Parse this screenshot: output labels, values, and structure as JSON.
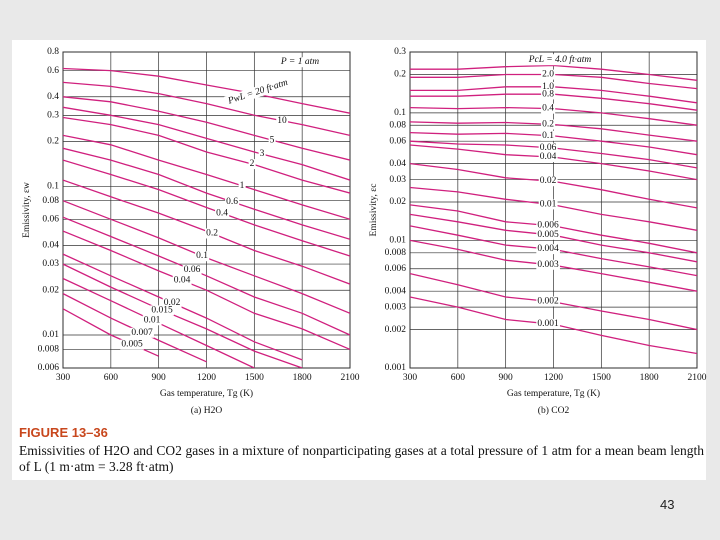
{
  "chart_data": [
    {
      "type": "line",
      "subtitle": "(a) H2O",
      "x_label": "Gas temperature, Tg (K)",
      "y_label": "Emissivity, εw",
      "annotations": [
        "P = 1 atm",
        "PwL = 20 ft·atm"
      ],
      "x": [
        300,
        600,
        900,
        1200,
        1500,
        1800,
        2100
      ],
      "xlim": [
        300,
        2100
      ],
      "xticks": [
        300,
        600,
        900,
        1200,
        1500,
        1800,
        2100
      ],
      "ylim": [
        0.006,
        0.8
      ],
      "yticks": [
        0.8,
        0.6,
        0.4,
        0.3,
        0.2,
        0.1,
        0.08,
        0.06,
        0.04,
        0.03,
        0.02,
        0.01,
        0.008,
        0.006
      ],
      "log_y": true,
      "grid": true,
      "series": [
        {
          "color": "#d0207e",
          "values": [
            0.62,
            0.6,
            0.55,
            0.48,
            0.42,
            0.36,
            0.31
          ]
        },
        {
          "name": "10",
          "color": "#d0207e",
          "values": [
            0.5,
            0.47,
            0.42,
            0.36,
            0.3,
            0.26,
            0.22
          ]
        },
        {
          "name": "5",
          "color": "#d0207e",
          "values": [
            0.4,
            0.37,
            0.32,
            0.27,
            0.22,
            0.18,
            0.15
          ]
        },
        {
          "name": "3",
          "color": "#d0207e",
          "values": [
            0.34,
            0.3,
            0.26,
            0.21,
            0.17,
            0.14,
            0.11
          ]
        },
        {
          "name": "2",
          "color": "#d0207e",
          "values": [
            0.29,
            0.26,
            0.22,
            0.17,
            0.14,
            0.11,
            0.09
          ]
        },
        {
          "name": "1",
          "color": "#d0207e",
          "values": [
            0.22,
            0.19,
            0.15,
            0.12,
            0.095,
            0.075,
            0.06
          ]
        },
        {
          "name": "0.6",
          "color": "#d0207e",
          "values": [
            0.18,
            0.15,
            0.12,
            0.09,
            0.07,
            0.055,
            0.044
          ]
        },
        {
          "name": "0.4",
          "color": "#d0207e",
          "values": [
            0.15,
            0.12,
            0.095,
            0.072,
            0.055,
            0.043,
            0.034
          ]
        },
        {
          "name": "0.2",
          "color": "#d0207e",
          "values": [
            0.11,
            0.085,
            0.066,
            0.05,
            0.037,
            0.029,
            0.022
          ]
        },
        {
          "name": "0.1",
          "color": "#d0207e",
          "values": [
            0.08,
            0.06,
            0.045,
            0.033,
            0.025,
            0.019,
            0.014
          ]
        },
        {
          "name": "0.06",
          "color": "#d0207e",
          "values": [
            0.062,
            0.046,
            0.034,
            0.025,
            0.018,
            0.014,
            0.01
          ]
        },
        {
          "name": "0.04",
          "color": "#d0207e",
          "values": [
            0.05,
            0.037,
            0.027,
            0.02,
            0.014,
            0.011,
            0.008
          ]
        },
        {
          "name": "0.02",
          "color": "#d0207e",
          "values": [
            0.035,
            0.025,
            0.018,
            0.013,
            0.009,
            0.0068,
            null
          ]
        },
        {
          "name": "0.015",
          "color": "#d0207e",
          "values": [
            0.03,
            0.021,
            0.015,
            0.011,
            0.0078,
            0.006,
            null
          ]
        },
        {
          "name": "0.01",
          "color": "#d0207e",
          "values": [
            0.024,
            0.017,
            0.012,
            0.0085,
            0.006,
            null,
            null
          ]
        },
        {
          "name": "0.007",
          "color": "#d0207e",
          "values": [
            0.019,
            0.013,
            0.0092,
            0.0066,
            null,
            null,
            null
          ]
        },
        {
          "name": "0.005",
          "color": "#d0207e",
          "values": [
            0.015,
            0.01,
            0.0072,
            null,
            null,
            null,
            null
          ]
        }
      ]
    },
    {
      "type": "line",
      "subtitle": "(b) CO2",
      "x_label": "Gas temperature, Tg (K)",
      "y_label": "Emissivity, εc",
      "annotations": [
        "PcL = 4.0 ft·atm"
      ],
      "x": [
        300,
        600,
        900,
        1200,
        1500,
        1800,
        2100
      ],
      "xlim": [
        300,
        2100
      ],
      "xticks": [
        300,
        600,
        900,
        1200,
        1500,
        1800,
        2100
      ],
      "ylim": [
        0.001,
        0.3
      ],
      "yticks": [
        0.3,
        0.2,
        0.1,
        0.08,
        0.06,
        0.04,
        0.03,
        0.02,
        0.01,
        0.008,
        0.006,
        0.004,
        0.003,
        0.002,
        0.001
      ],
      "log_y": true,
      "grid": true,
      "series": [
        {
          "color": "#d0207e",
          "values": [
            0.22,
            0.22,
            0.23,
            0.235,
            0.22,
            0.2,
            0.18
          ]
        },
        {
          "name": "2.0",
          "color": "#d0207e",
          "values": [
            0.19,
            0.19,
            0.2,
            0.2,
            0.19,
            0.17,
            0.155
          ]
        },
        {
          "name": "1.0",
          "color": "#d0207e",
          "values": [
            0.15,
            0.15,
            0.16,
            0.16,
            0.15,
            0.135,
            0.12
          ]
        },
        {
          "name": "0.8",
          "color": "#d0207e",
          "values": [
            0.135,
            0.135,
            0.14,
            0.14,
            0.13,
            0.118,
            0.105
          ]
        },
        {
          "name": "0.4",
          "color": "#d0207e",
          "values": [
            0.11,
            0.108,
            0.11,
            0.108,
            0.1,
            0.09,
            0.08
          ]
        },
        {
          "name": "0.2",
          "color": "#d0207e",
          "values": [
            0.085,
            0.083,
            0.084,
            0.081,
            0.075,
            0.067,
            0.06
          ]
        },
        {
          "name": "0.1",
          "color": "#d0207e",
          "values": [
            0.07,
            0.068,
            0.069,
            0.066,
            0.06,
            0.054,
            0.047
          ]
        },
        {
          "name": "0.06",
          "color": "#d0207e",
          "values": [
            0.06,
            0.057,
            0.056,
            0.053,
            0.048,
            0.043,
            0.037
          ]
        },
        {
          "name": "0.04",
          "color": "#d0207e",
          "values": [
            0.056,
            0.052,
            0.047,
            0.045,
            0.04,
            0.035,
            0.03
          ]
        },
        {
          "name": "0.02",
          "color": "#d0207e",
          "values": [
            0.04,
            0.036,
            0.031,
            0.029,
            0.025,
            0.021,
            0.018
          ]
        },
        {
          "name": "0.01",
          "color": "#d0207e",
          "values": [
            0.026,
            0.024,
            0.021,
            0.019,
            0.016,
            0.014,
            0.012
          ]
        },
        {
          "name": "0.006",
          "color": "#d0207e",
          "values": [
            0.019,
            0.017,
            0.014,
            0.013,
            0.011,
            0.0095,
            0.008
          ]
        },
        {
          "name": "0.005",
          "color": "#d0207e",
          "values": [
            0.016,
            0.014,
            0.012,
            0.011,
            0.0092,
            0.008,
            0.0068
          ]
        },
        {
          "name": "0.004",
          "color": "#d0207e",
          "values": [
            0.013,
            0.011,
            0.0092,
            0.0085,
            0.0072,
            0.0062,
            0.0053
          ]
        },
        {
          "name": "0.003",
          "color": "#d0207e",
          "values": [
            0.01,
            0.0085,
            0.007,
            0.0064,
            0.0055,
            0.0047,
            0.004
          ]
        },
        {
          "name": "0.002",
          "color": "#d0207e",
          "values": [
            0.0055,
            0.0045,
            0.0036,
            0.0033,
            0.0028,
            0.0024,
            0.002
          ]
        },
        {
          "name": "0.001",
          "color": "#d0207e",
          "values": [
            0.0036,
            0.003,
            0.0024,
            0.0022,
            0.0018,
            0.0015,
            0.0013
          ]
        }
      ]
    }
  ],
  "caption": {
    "label": "FIGURE 13–36",
    "text": "Emissivities of H2O and CO2 gases in a mixture of nonparticipating gases at a total pressure of 1 atm for a mean beam length of L (1 m·atm = 3.28 ft·atm)"
  },
  "page_number": "43"
}
